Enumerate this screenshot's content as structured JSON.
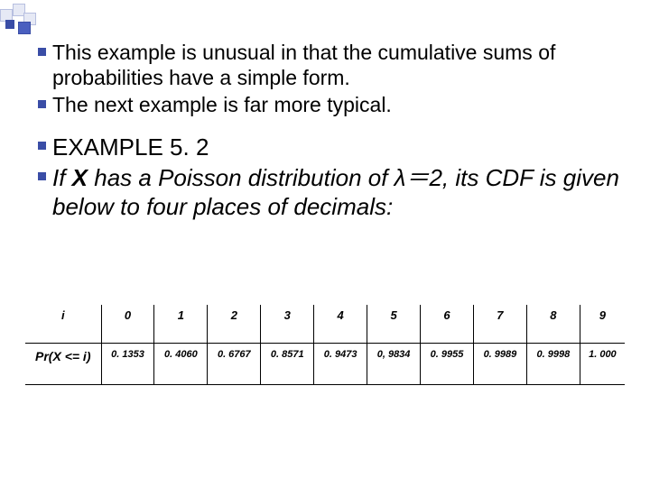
{
  "decor": {
    "accent_color": "#3a4da6",
    "light_square": "#e6e9f5"
  },
  "bullets_block1": [
    "This example is unusual in that the cumulative sums of probabilities have a simple form.",
    "The next example is far more typical."
  ],
  "bullets_block2": {
    "line1": "EXAMPLE 5. 2",
    "line2_pre": "If ",
    "line2_X": "X",
    "line2_mid": " has a Poisson distribution of  λ＝2",
    "line2_post": ", its CDF is given below to four places of decimals:"
  },
  "cdf_table": {
    "row_header_i": "i",
    "row_header_pr": "Pr(X <= i)",
    "columns": [
      "0",
      "1",
      "2",
      "3",
      "4",
      "5",
      "6",
      "7",
      "8",
      "9"
    ],
    "values": [
      "0. 1353",
      "0. 4060",
      "0. 6767",
      "0. 8571",
      "0. 9473",
      "0, 9834",
      "0. 9955",
      "0. 9989",
      "0. 9998",
      "1. 000"
    ],
    "header_fontsize": 13,
    "value_fontsize": 11,
    "border_color": "#000000"
  }
}
